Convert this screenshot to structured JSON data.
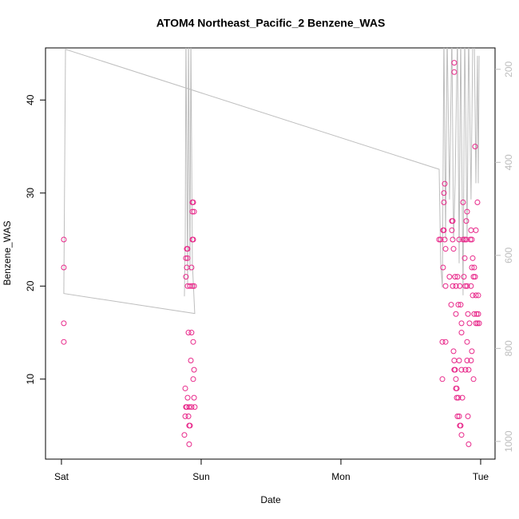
{
  "chart_data": {
    "type": "scatter",
    "title": "ATOM4 Northeast_Pacific_2 Benzene_WAS",
    "xlabel": "Date",
    "ylabel": "Benzene_WAS",
    "xlim": [
      -0.114,
      3.103
    ],
    "ylim": [
      1.4,
      45.6
    ],
    "y2lim": [
      1038,
      154
    ],
    "xticks": [
      {
        "value": 0,
        "label": "Sat"
      },
      {
        "value": 1,
        "label": "Sun"
      },
      {
        "value": 2,
        "label": "Mon"
      },
      {
        "value": 3,
        "label": "Tue"
      }
    ],
    "yticks": [
      10,
      20,
      30,
      40
    ],
    "y2ticks": [
      200,
      400,
      600,
      800,
      1000
    ],
    "series": [
      {
        "type": "scatter",
        "color": "#e8288a",
        "x": [
          0.017,
          0.017,
          0.017,
          0.017,
          0.903,
          0.897,
          0.891,
          0.903,
          0.897,
          0.891,
          0.903,
          0.92,
          0.937,
          0.949,
          0.931,
          0.937,
          0.943,
          0.937,
          0.943,
          0.937,
          0.949,
          0.909,
          0.931,
          0.943,
          0.926,
          0.949,
          0.943,
          0.886,
          0.903,
          0.891,
          0.897,
          0.914,
          0.931,
          0.954,
          0.949,
          0.886,
          0.909,
          0.92,
          0.914,
          0.88,
          0.914,
          2.703,
          2.714,
          2.731,
          2.737,
          2.743,
          2.731,
          2.737,
          2.737,
          2.743,
          2.749,
          2.749,
          2.726,
          2.749,
          2.726,
          2.777,
          2.794,
          2.8,
          2.794,
          2.8,
          2.806,
          2.8,
          2.817,
          2.823,
          2.834,
          2.84,
          2.823,
          2.811,
          2.811,
          2.789,
          2.806,
          2.811,
          2.817,
          2.823,
          2.829,
          2.823,
          2.829,
          2.84,
          2.834,
          2.846,
          2.851,
          2.863,
          2.857,
          2.869,
          2.846,
          2.851,
          2.857,
          2.863,
          2.863,
          2.874,
          2.874,
          2.88,
          2.886,
          2.886,
          2.891,
          2.897,
          2.897,
          2.903,
          2.909,
          2.903,
          2.891,
          2.863,
          2.914,
          2.903,
          2.909,
          2.914,
          2.931,
          2.937,
          2.943,
          2.949,
          2.937,
          2.954,
          2.96,
          2.96,
          2.966,
          2.971,
          2.966,
          2.943,
          2.954,
          2.966,
          2.977,
          2.983,
          2.989,
          2.977,
          2.983,
          2.949,
          2.937,
          2.931,
          2.92,
          2.926,
          2.931,
          2.903,
          2.846,
          2.811
        ],
        "values": [
          25,
          22,
          16,
          14,
          24,
          24,
          23,
          23,
          22,
          21,
          20,
          20,
          20,
          20,
          22,
          25,
          25,
          29,
          29,
          28,
          28,
          15,
          15,
          14,
          12,
          11,
          10,
          9,
          8,
          7,
          7,
          7,
          7,
          7,
          8,
          6,
          6,
          5,
          5,
          4,
          3,
          25,
          25,
          26,
          26,
          25,
          22,
          29,
          30,
          31,
          24,
          20,
          14,
          14,
          10,
          21,
          27,
          27,
          26,
          25,
          24,
          20,
          21,
          20,
          21,
          18,
          17,
          43,
          44,
          18,
          13,
          12,
          11,
          10,
          9,
          9,
          8,
          8,
          6,
          6,
          5,
          4,
          5,
          8,
          25,
          20,
          18,
          16,
          15,
          29,
          25,
          21,
          23,
          25,
          20,
          25,
          27,
          28,
          17,
          12,
          11,
          11,
          11,
          14,
          6,
          3,
          26,
          25,
          23,
          21,
          22,
          22,
          21,
          35,
          26,
          17,
          19,
          19,
          17,
          16,
          16,
          17,
          16,
          29,
          19,
          10,
          13,
          12,
          16,
          25,
          20,
          20,
          12,
          11
        ]
      },
      {
        "type": "line",
        "axis": "y2",
        "color": "#bebebe",
        "x": [
          0.88,
          0.886,
          0.891,
          0.903,
          0.909,
          0.92,
          0.926,
          0.937,
          0.954,
          0.017,
          0.029,
          2.703,
          2.714,
          2.726,
          2.737,
          2.749,
          2.76,
          2.777,
          2.794,
          2.806,
          2.817,
          2.834,
          2.846,
          2.857,
          2.874,
          2.886,
          2.903,
          2.914,
          2.931,
          2.943,
          2.954,
          2.966,
          2.977,
          2.983,
          2.989
        ],
        "values": [
          688,
          566,
          119,
          669,
          119,
          634,
          119,
          617,
          725,
          682,
          157,
          415,
          617,
          669,
          119,
          566,
          119,
          480,
          119,
          566,
          445,
          119,
          617,
          119,
          686,
          119,
          566,
          119,
          480,
          154,
          119,
          445,
          171,
          445,
          171
        ]
      }
    ]
  }
}
